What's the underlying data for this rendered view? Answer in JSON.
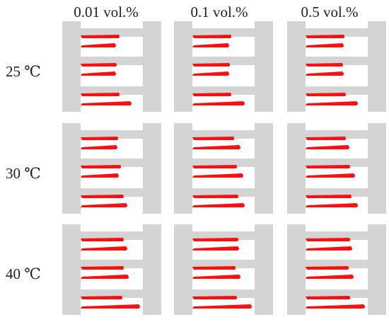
{
  "columns": [
    "0.01 vol.%",
    "0.1 vol.%",
    "0.5 vol.%"
  ],
  "rows": [
    "25 ℃",
    "30 ℃",
    "40 ℃"
  ],
  "colors": {
    "channel_wall": "#d4d4d4",
    "fluid": "#ff1010",
    "background": "#ffffff"
  }
}
